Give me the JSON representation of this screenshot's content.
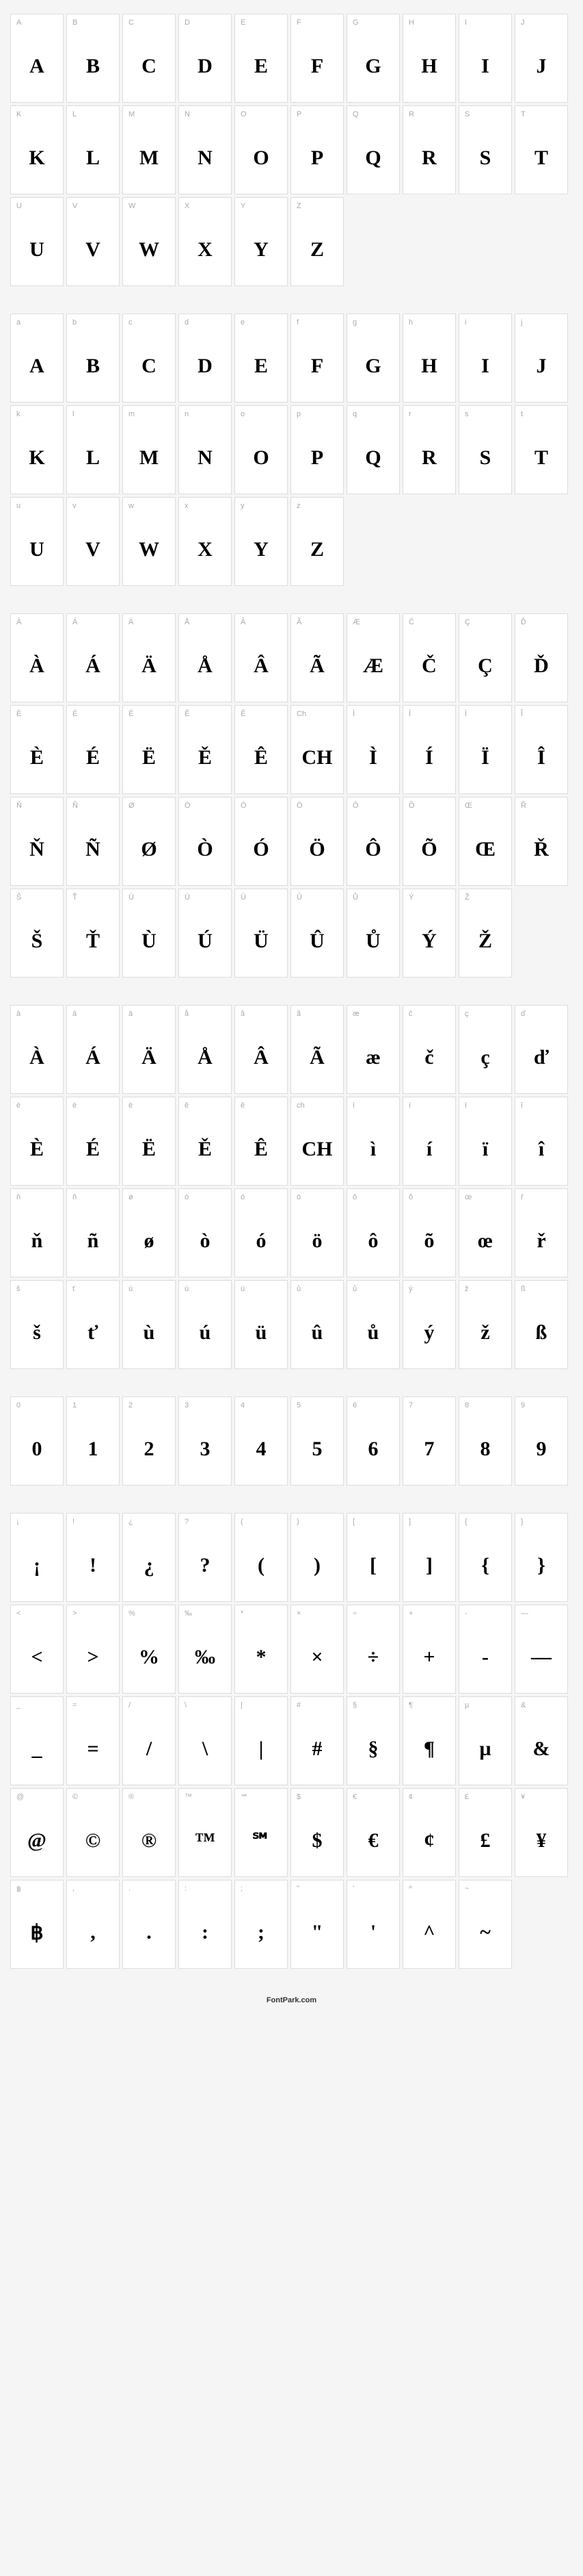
{
  "footer": "FontPark.com",
  "sections": [
    {
      "cells": [
        {
          "label": "A",
          "glyph": "A"
        },
        {
          "label": "B",
          "glyph": "B"
        },
        {
          "label": "C",
          "glyph": "C"
        },
        {
          "label": "D",
          "glyph": "D"
        },
        {
          "label": "E",
          "glyph": "E"
        },
        {
          "label": "F",
          "glyph": "F"
        },
        {
          "label": "G",
          "glyph": "G"
        },
        {
          "label": "H",
          "glyph": "H"
        },
        {
          "label": "I",
          "glyph": "I"
        },
        {
          "label": "J",
          "glyph": "J"
        },
        {
          "label": "K",
          "glyph": "K"
        },
        {
          "label": "L",
          "glyph": "L"
        },
        {
          "label": "M",
          "glyph": "M"
        },
        {
          "label": "N",
          "glyph": "N"
        },
        {
          "label": "O",
          "glyph": "O"
        },
        {
          "label": "P",
          "glyph": "P"
        },
        {
          "label": "Q",
          "glyph": "Q"
        },
        {
          "label": "R",
          "glyph": "R"
        },
        {
          "label": "S",
          "glyph": "S"
        },
        {
          "label": "T",
          "glyph": "T"
        },
        {
          "label": "U",
          "glyph": "U"
        },
        {
          "label": "V",
          "glyph": "V"
        },
        {
          "label": "W",
          "glyph": "W"
        },
        {
          "label": "X",
          "glyph": "X"
        },
        {
          "label": "Y",
          "glyph": "Y"
        },
        {
          "label": "Z",
          "glyph": "Z"
        }
      ]
    },
    {
      "cells": [
        {
          "label": "a",
          "glyph": "A"
        },
        {
          "label": "b",
          "glyph": "B"
        },
        {
          "label": "c",
          "glyph": "C"
        },
        {
          "label": "d",
          "glyph": "D"
        },
        {
          "label": "e",
          "glyph": "E"
        },
        {
          "label": "f",
          "glyph": "F"
        },
        {
          "label": "g",
          "glyph": "G"
        },
        {
          "label": "h",
          "glyph": "H"
        },
        {
          "label": "i",
          "glyph": "I"
        },
        {
          "label": "j",
          "glyph": "J"
        },
        {
          "label": "k",
          "glyph": "K"
        },
        {
          "label": "l",
          "glyph": "L"
        },
        {
          "label": "m",
          "glyph": "M"
        },
        {
          "label": "n",
          "glyph": "N"
        },
        {
          "label": "o",
          "glyph": "O"
        },
        {
          "label": "p",
          "glyph": "P"
        },
        {
          "label": "q",
          "glyph": "Q"
        },
        {
          "label": "r",
          "glyph": "R"
        },
        {
          "label": "s",
          "glyph": "S"
        },
        {
          "label": "t",
          "glyph": "T"
        },
        {
          "label": "u",
          "glyph": "U"
        },
        {
          "label": "v",
          "glyph": "V"
        },
        {
          "label": "w",
          "glyph": "W"
        },
        {
          "label": "x",
          "glyph": "X"
        },
        {
          "label": "y",
          "glyph": "Y"
        },
        {
          "label": "z",
          "glyph": "Z"
        }
      ]
    },
    {
      "cells": [
        {
          "label": "À",
          "glyph": "À"
        },
        {
          "label": "Á",
          "glyph": "Á"
        },
        {
          "label": "Ä",
          "glyph": "Ä"
        },
        {
          "label": "Å",
          "glyph": "Å"
        },
        {
          "label": "Â",
          "glyph": "Â"
        },
        {
          "label": "Ã",
          "glyph": "Ã"
        },
        {
          "label": "Æ",
          "glyph": "Æ"
        },
        {
          "label": "Č",
          "glyph": "Č"
        },
        {
          "label": "Ç",
          "glyph": "Ç"
        },
        {
          "label": "Ď",
          "glyph": "Ď"
        },
        {
          "label": "È",
          "glyph": "È"
        },
        {
          "label": "É",
          "glyph": "É"
        },
        {
          "label": "Ë",
          "glyph": "Ë"
        },
        {
          "label": "Ě",
          "glyph": "Ě"
        },
        {
          "label": "Ê",
          "glyph": "Ê"
        },
        {
          "label": "Ch",
          "glyph": "CH"
        },
        {
          "label": "Ì",
          "glyph": "Ì"
        },
        {
          "label": "Í",
          "glyph": "Í"
        },
        {
          "label": "Ï",
          "glyph": "Ï"
        },
        {
          "label": "Î",
          "glyph": "Î"
        },
        {
          "label": "Ň",
          "glyph": "Ň"
        },
        {
          "label": "Ñ",
          "glyph": "Ñ"
        },
        {
          "label": "Ø",
          "glyph": "Ø"
        },
        {
          "label": "Ò",
          "glyph": "Ò"
        },
        {
          "label": "Ó",
          "glyph": "Ó"
        },
        {
          "label": "Ö",
          "glyph": "Ö"
        },
        {
          "label": "Ô",
          "glyph": "Ô"
        },
        {
          "label": "Õ",
          "glyph": "Õ"
        },
        {
          "label": "Œ",
          "glyph": "Œ"
        },
        {
          "label": "Ř",
          "glyph": "Ř"
        },
        {
          "label": "Š",
          "glyph": "Š"
        },
        {
          "label": "Ť",
          "glyph": "Ť"
        },
        {
          "label": "Ù",
          "glyph": "Ù"
        },
        {
          "label": "Ú",
          "glyph": "Ú"
        },
        {
          "label": "Ü",
          "glyph": "Ü"
        },
        {
          "label": "Û",
          "glyph": "Û"
        },
        {
          "label": "Ů",
          "glyph": "Ů"
        },
        {
          "label": "Ý",
          "glyph": "Ý"
        },
        {
          "label": "Ž",
          "glyph": "Ž"
        }
      ]
    },
    {
      "cells": [
        {
          "label": "à",
          "glyph": "À"
        },
        {
          "label": "á",
          "glyph": "Á"
        },
        {
          "label": "ä",
          "glyph": "Ä"
        },
        {
          "label": "å",
          "glyph": "Å"
        },
        {
          "label": "â",
          "glyph": "Â"
        },
        {
          "label": "ã",
          "glyph": "Ã"
        },
        {
          "label": "æ",
          "glyph": "æ"
        },
        {
          "label": "č",
          "glyph": "č"
        },
        {
          "label": "ç",
          "glyph": "ç"
        },
        {
          "label": "ď",
          "glyph": "ď"
        },
        {
          "label": "è",
          "glyph": "È"
        },
        {
          "label": "é",
          "glyph": "É"
        },
        {
          "label": "ë",
          "glyph": "Ë"
        },
        {
          "label": "ě",
          "glyph": "Ě"
        },
        {
          "label": "ê",
          "glyph": "Ê"
        },
        {
          "label": "ch",
          "glyph": "CH"
        },
        {
          "label": "ì",
          "glyph": "ì"
        },
        {
          "label": "í",
          "glyph": "í"
        },
        {
          "label": "ï",
          "glyph": "ï"
        },
        {
          "label": "î",
          "glyph": "î"
        },
        {
          "label": "ň",
          "glyph": "ň"
        },
        {
          "label": "ñ",
          "glyph": "ñ"
        },
        {
          "label": "ø",
          "glyph": "ø"
        },
        {
          "label": "ò",
          "glyph": "ò"
        },
        {
          "label": "ó",
          "glyph": "ó"
        },
        {
          "label": "ö",
          "glyph": "ö"
        },
        {
          "label": "ô",
          "glyph": "ô"
        },
        {
          "label": "õ",
          "glyph": "õ"
        },
        {
          "label": "œ",
          "glyph": "œ"
        },
        {
          "label": "ř",
          "glyph": "ř"
        },
        {
          "label": "š",
          "glyph": "š"
        },
        {
          "label": "ť",
          "glyph": "ť"
        },
        {
          "label": "ù",
          "glyph": "ù"
        },
        {
          "label": "ú",
          "glyph": "ú"
        },
        {
          "label": "ü",
          "glyph": "ü"
        },
        {
          "label": "û",
          "glyph": "û"
        },
        {
          "label": "ů",
          "glyph": "ů"
        },
        {
          "label": "ý",
          "glyph": "ý"
        },
        {
          "label": "ž",
          "glyph": "ž"
        },
        {
          "label": "ß",
          "glyph": "ß"
        }
      ]
    },
    {
      "cells": [
        {
          "label": "0",
          "glyph": "0"
        },
        {
          "label": "1",
          "glyph": "1"
        },
        {
          "label": "2",
          "glyph": "2"
        },
        {
          "label": "3",
          "glyph": "3"
        },
        {
          "label": "4",
          "glyph": "4"
        },
        {
          "label": "5",
          "glyph": "5"
        },
        {
          "label": "6",
          "glyph": "6"
        },
        {
          "label": "7",
          "glyph": "7"
        },
        {
          "label": "8",
          "glyph": "8"
        },
        {
          "label": "9",
          "glyph": "9"
        }
      ]
    },
    {
      "cells": [
        {
          "label": "¡",
          "glyph": "¡"
        },
        {
          "label": "!",
          "glyph": "!"
        },
        {
          "label": "¿",
          "glyph": "¿"
        },
        {
          "label": "?",
          "glyph": "?"
        },
        {
          "label": "(",
          "glyph": "("
        },
        {
          "label": ")",
          "glyph": ")"
        },
        {
          "label": "[",
          "glyph": "["
        },
        {
          "label": "]",
          "glyph": "]"
        },
        {
          "label": "{",
          "glyph": "{"
        },
        {
          "label": "}",
          "glyph": "}"
        },
        {
          "label": "<",
          "glyph": "<"
        },
        {
          "label": ">",
          "glyph": ">"
        },
        {
          "label": "%",
          "glyph": "%"
        },
        {
          "label": "‰",
          "glyph": "‰"
        },
        {
          "label": "*",
          "glyph": "*"
        },
        {
          "label": "×",
          "glyph": "×"
        },
        {
          "label": "÷",
          "glyph": "÷"
        },
        {
          "label": "+",
          "glyph": "+"
        },
        {
          "label": "-",
          "glyph": "-"
        },
        {
          "label": "—",
          "glyph": "—"
        },
        {
          "label": "_",
          "glyph": "_"
        },
        {
          "label": "=",
          "glyph": "="
        },
        {
          "label": "/",
          "glyph": "/"
        },
        {
          "label": "\\",
          "glyph": "\\"
        },
        {
          "label": "|",
          "glyph": "|"
        },
        {
          "label": "#",
          "glyph": "#"
        },
        {
          "label": "§",
          "glyph": "§"
        },
        {
          "label": "¶",
          "glyph": "¶"
        },
        {
          "label": "µ",
          "glyph": "µ"
        },
        {
          "label": "&",
          "glyph": "&"
        },
        {
          "label": "@",
          "glyph": "@"
        },
        {
          "label": "©",
          "glyph": "©"
        },
        {
          "label": "®",
          "glyph": "®"
        },
        {
          "label": "™",
          "glyph": "™"
        },
        {
          "label": "℠",
          "glyph": "℠"
        },
        {
          "label": "$",
          "glyph": "$"
        },
        {
          "label": "€",
          "glyph": "€"
        },
        {
          "label": "¢",
          "glyph": "¢"
        },
        {
          "label": "£",
          "glyph": "£"
        },
        {
          "label": "¥",
          "glyph": "¥"
        },
        {
          "label": "฿",
          "glyph": "฿"
        },
        {
          "label": ",",
          "glyph": ","
        },
        {
          "label": ".",
          "glyph": "."
        },
        {
          "label": ":",
          "glyph": ":"
        },
        {
          "label": ";",
          "glyph": ";"
        },
        {
          "label": "\"",
          "glyph": "\""
        },
        {
          "label": "'",
          "glyph": "'"
        },
        {
          "label": "^",
          "glyph": "^"
        },
        {
          "label": "~",
          "glyph": "~"
        }
      ]
    }
  ]
}
